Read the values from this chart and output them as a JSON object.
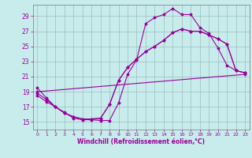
{
  "xlabel": "Windchill (Refroidissement éolien,°C)",
  "background_color": "#c8ecec",
  "line_color": "#990099",
  "xlim": [
    -0.5,
    23.5
  ],
  "ylim": [
    14.0,
    30.5
  ],
  "yticks": [
    15,
    17,
    19,
    21,
    23,
    25,
    27,
    29
  ],
  "xticks": [
    0,
    1,
    2,
    3,
    4,
    5,
    6,
    7,
    8,
    9,
    10,
    11,
    12,
    13,
    14,
    15,
    16,
    17,
    18,
    19,
    20,
    21,
    22,
    23
  ],
  "line1_x": [
    0,
    1,
    2,
    3,
    4,
    5,
    6,
    7,
    8,
    9,
    10,
    11,
    12,
    13,
    14,
    15,
    16,
    17,
    18,
    19,
    20,
    21,
    22,
    23
  ],
  "line1_y": [
    19.5,
    18.2,
    17.0,
    16.3,
    15.5,
    15.3,
    15.3,
    15.2,
    15.2,
    17.5,
    21.3,
    23.2,
    28.0,
    28.8,
    29.2,
    30.0,
    29.2,
    29.2,
    27.5,
    26.7,
    24.8,
    22.5,
    21.8,
    21.5
  ],
  "line2_x": [
    0,
    1,
    2,
    3,
    4,
    5,
    6,
    7,
    8,
    9,
    10,
    11,
    12,
    13,
    14,
    15,
    16,
    17,
    18,
    19,
    20,
    21,
    22,
    23
  ],
  "line2_y": [
    18.8,
    18.0,
    17.0,
    16.2,
    15.7,
    15.4,
    15.4,
    15.5,
    17.3,
    20.5,
    22.2,
    23.3,
    24.3,
    25.0,
    25.8,
    26.8,
    27.3,
    27.0,
    27.0,
    26.5,
    26.0,
    25.3,
    21.8,
    21.5
  ],
  "line3_x": [
    0,
    23
  ],
  "line3_y": [
    19.0,
    21.3
  ],
  "line4_x": [
    0,
    1,
    2,
    3,
    4,
    5,
    6,
    7,
    8,
    9,
    10,
    11,
    12,
    13,
    14,
    15,
    16,
    17,
    18,
    19,
    20,
    21,
    22,
    23
  ],
  "line4_y": [
    18.5,
    17.7,
    17.0,
    16.2,
    15.7,
    15.4,
    15.4,
    15.5,
    17.3,
    20.5,
    22.2,
    23.3,
    24.3,
    25.0,
    25.8,
    26.8,
    27.3,
    27.0,
    27.0,
    26.5,
    26.0,
    25.3,
    21.8,
    21.5
  ]
}
